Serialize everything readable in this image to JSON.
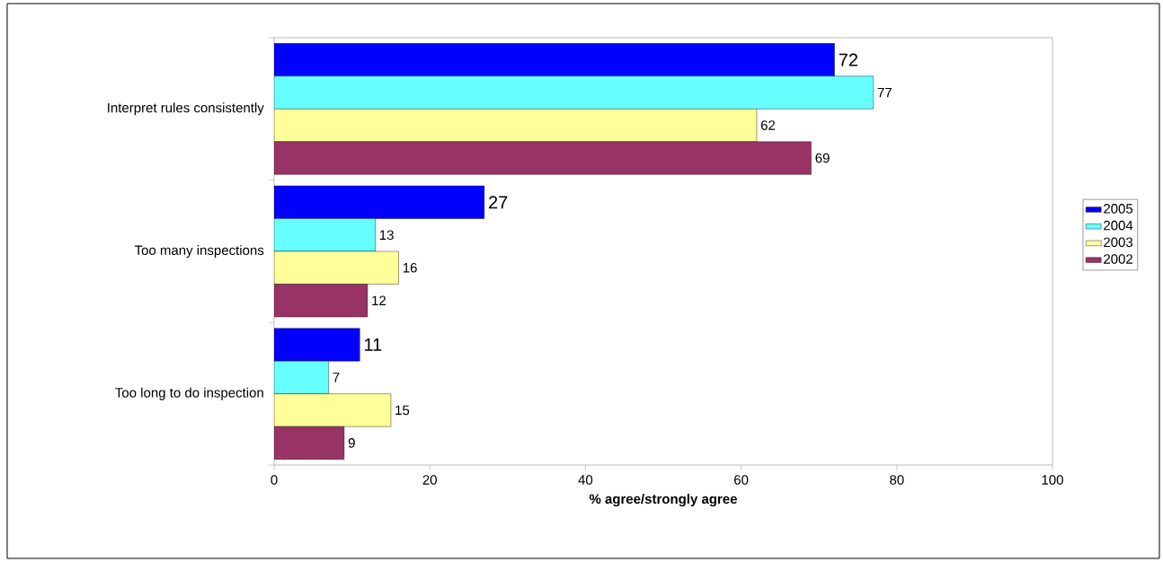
{
  "chart_data": {
    "type": "bar",
    "orientation": "horizontal",
    "xlabel": "**% agree/strongly agree**",
    "categories": [
      "Interpret rules consistently",
      "Too many inspections",
      "Too long to do inspection"
    ],
    "series": [
      {
        "name": "2005",
        "color": "#0000ff",
        "values": [
          72,
          27,
          11
        ]
      },
      {
        "name": "2004",
        "color": "#66ffff",
        "values": [
          77,
          13,
          7
        ]
      },
      {
        "name": "2003",
        "color": "#ffff99",
        "values": [
          62,
          16,
          15
        ]
      },
      {
        "name": "2002",
        "color": "#993366",
        "values": [
          69,
          12,
          9
        ]
      }
    ],
    "xlim": [
      0,
      100
    ],
    "xticks": [
      0,
      20,
      40,
      60,
      80,
      100
    ],
    "data_labels": true,
    "legend": "right",
    "grid": false
  }
}
